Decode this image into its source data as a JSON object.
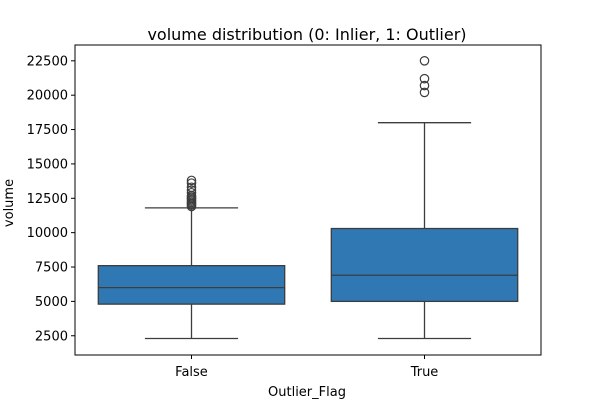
{
  "chart_data": {
    "type": "box",
    "title": "volume distribution (0: Inlier, 1: Outlier)",
    "xlabel": "Outlier_Flag",
    "ylabel": "volume",
    "categories": [
      "False",
      "True"
    ],
    "ylim": [
      1100,
      23650
    ],
    "yticks": [
      2500,
      5000,
      7500,
      10000,
      12500,
      15000,
      17500,
      20000,
      22500
    ],
    "ytick_labels": [
      "2500",
      "5000",
      "7500",
      "10000",
      "12500",
      "15000",
      "17500",
      "20000",
      "22500"
    ],
    "grid": false,
    "legend": "none",
    "box_color": "#2f78b3",
    "line_color": "#3d3d3d",
    "boxes": [
      {
        "category": "False",
        "whisker_low": 2300,
        "q1": 4800,
        "median": 6000,
        "q3": 7600,
        "whisker_high": 11800,
        "outliers": [
          11900,
          12000,
          12100,
          12200,
          12300,
          12400,
          12500,
          12600,
          12700,
          12900,
          13100,
          13300,
          13600,
          13800
        ]
      },
      {
        "category": "True",
        "whisker_low": 2300,
        "q1": 5000,
        "median": 6900,
        "q3": 10300,
        "whisker_high": 18000,
        "outliers": [
          20200,
          20700,
          21200,
          22500
        ]
      }
    ]
  }
}
